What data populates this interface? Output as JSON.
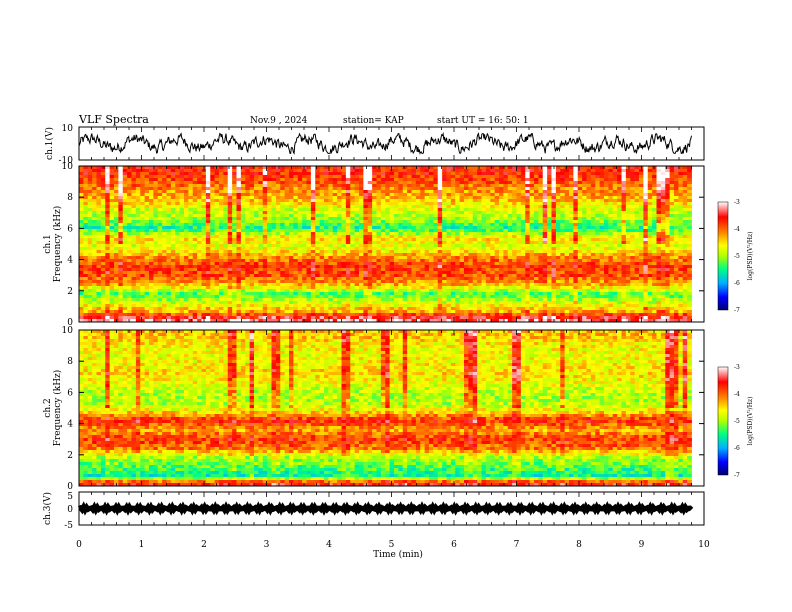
{
  "header": {
    "title": "VLF Spectra",
    "date": "Nov.9 , 2024",
    "station": "station= KAP",
    "start": "start UT = 16: 50: 1"
  },
  "chart_data": [
    {
      "type": "line",
      "name": "ch1-waveform",
      "ylabel": "ch.1(V)",
      "ylim": [
        -10,
        10
      ],
      "ytick_labels": [
        "10",
        "-10"
      ],
      "xlim": [
        0,
        10
      ],
      "x_extent": [
        0,
        9.8
      ],
      "y_range": [
        -6,
        6
      ]
    },
    {
      "type": "heatmap",
      "name": "ch1-spectrogram",
      "ylabel": "ch.1 Frequency (kHz)",
      "ylim": [
        0,
        10
      ],
      "ytick_labels": [
        "0",
        "2",
        "4",
        "6",
        "8",
        "10"
      ],
      "xlim": [
        0,
        10
      ],
      "x_extent": [
        0,
        9.8
      ],
      "colorbar": {
        "label": "log(PSD)(V²/Hz)",
        "range": [
          -7,
          -3
        ],
        "tick_labels": [
          "-3",
          "-4",
          "-5",
          "-6",
          "-7"
        ]
      },
      "freq_profile_kHz": [
        [
          0.2,
          -3.3
        ],
        [
          0.6,
          -4.2
        ],
        [
          1.2,
          -4.8
        ],
        [
          1.8,
          -5.3
        ],
        [
          2.4,
          -4.3
        ],
        [
          3.0,
          -3.9
        ],
        [
          3.6,
          -3.8
        ],
        [
          4.2,
          -4.2
        ],
        [
          4.8,
          -4.8
        ],
        [
          5.4,
          -4.5
        ],
        [
          6.0,
          -5.5
        ],
        [
          6.6,
          -5.0
        ],
        [
          7.2,
          -4.8
        ],
        [
          7.8,
          -4.4
        ],
        [
          8.4,
          -4.2
        ],
        [
          9.0,
          -3.9
        ],
        [
          9.6,
          -3.7
        ]
      ]
    },
    {
      "type": "heatmap",
      "name": "ch2-spectrogram",
      "ylabel": "ch.2 Frequency (kHz)",
      "ylim": [
        0,
        10
      ],
      "ytick_labels": [
        "0",
        "2",
        "4",
        "6",
        "8",
        "10"
      ],
      "xlim": [
        0,
        10
      ],
      "x_extent": [
        0,
        9.8
      ],
      "colorbar": {
        "label": "log(PSD)(V²/Hz)",
        "range": [
          -7,
          -3
        ],
        "tick_labels": [
          "-3",
          "-4",
          "-5",
          "-6",
          "-7"
        ]
      },
      "freq_profile_kHz": [
        [
          0.2,
          -3.6
        ],
        [
          0.6,
          -5.6
        ],
        [
          1.2,
          -5.3
        ],
        [
          1.8,
          -5.0
        ],
        [
          2.4,
          -4.1
        ],
        [
          3.0,
          -3.8
        ],
        [
          3.6,
          -4.3
        ],
        [
          4.2,
          -3.7
        ],
        [
          4.8,
          -4.6
        ],
        [
          5.4,
          -5.0
        ],
        [
          6.0,
          -4.9
        ],
        [
          6.6,
          -4.7
        ],
        [
          7.2,
          -4.5
        ],
        [
          7.8,
          -4.6
        ],
        [
          8.4,
          -4.7
        ],
        [
          9.0,
          -4.6
        ],
        [
          9.6,
          -4.4
        ]
      ]
    },
    {
      "type": "line",
      "name": "ch3-waveform",
      "ylabel": "ch.3(V)",
      "ylim": [
        -5,
        5
      ],
      "ytick_labels": [
        "5",
        "0",
        "-5"
      ],
      "xlim": [
        0,
        10
      ],
      "x_extent": [
        0,
        9.8
      ],
      "y_range": [
        -0.6,
        0.6
      ]
    }
  ],
  "x_axis": {
    "label": "Time (min)",
    "tick_labels": [
      "0",
      "1",
      "2",
      "3",
      "4",
      "5",
      "6",
      "7",
      "8",
      "9",
      "10"
    ]
  },
  "colors": {
    "colormap": [
      "#000070",
      "#0000ff",
      "#00b0ff",
      "#00ff80",
      "#b0ff00",
      "#ffff00",
      "#ff8000",
      "#ff0000",
      "#ffffff"
    ]
  }
}
